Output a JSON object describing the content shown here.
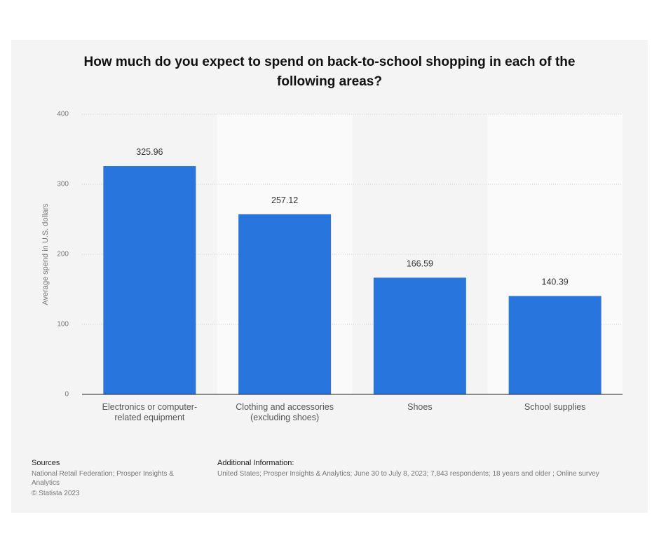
{
  "chart_data": {
    "type": "bar",
    "title": "How much do you expect to spend on back-to-school shopping in each of the following areas?",
    "y_label": "Average spend in U.S. dollars",
    "categories": [
      "Electronics or computer-related equipment",
      "Clothing and accessories (excluding shoes)",
      "Shoes",
      "School supplies"
    ],
    "values": [
      325.96,
      257.12,
      166.59,
      140.39
    ],
    "color": "#2876dd",
    "ylim": [
      0,
      400
    ],
    "yticks": [
      0,
      100,
      200,
      300,
      400
    ],
    "grid": true
  },
  "footer": {
    "sources_heading": "Sources",
    "sources": "National Retail Federation; Prosper Insights & Analytics",
    "copyright": "© Statista 2023",
    "additional_heading": "Additional Information:",
    "additional": "United States; Prosper Insights & Analytics; June 30 to July 8, 2023; 7,843 respondents; 18 years and older ; Online survey"
  }
}
